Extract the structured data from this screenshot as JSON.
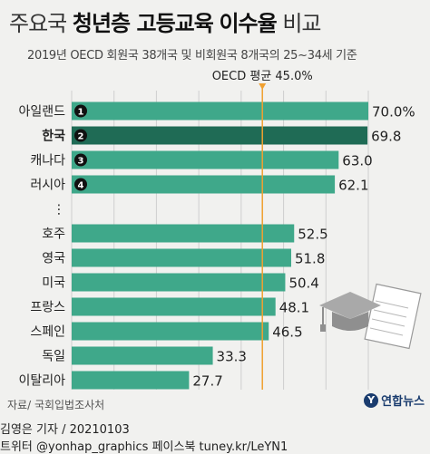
{
  "header": {
    "title_light": "주요국",
    "title_bold": "청년층 고등교육",
    "title_bold2": "이수율",
    "title_light2": "비교",
    "subtitle": "2019년 OECD 회원국 38개국 및 비회원국 8개국의 25~34세 기준"
  },
  "chart_data": {
    "type": "bar",
    "orientation": "horizontal",
    "categories": [
      "아일랜드",
      "한국",
      "캐나다",
      "러시아",
      "⋮",
      "호주",
      "영국",
      "미국",
      "프랑스",
      "스페인",
      "독일",
      "이탈리아"
    ],
    "values": [
      70.0,
      69.8,
      63.0,
      62.1,
      null,
      52.5,
      51.8,
      50.4,
      48.1,
      46.5,
      33.3,
      27.7
    ],
    "value_labels": [
      "70.0%",
      "69.8",
      "63.0",
      "62.1",
      "",
      "52.5",
      "51.8",
      "50.4",
      "48.1",
      "46.5",
      "33.3",
      "27.7"
    ],
    "rank_badges": [
      "1",
      "2",
      "3",
      "4",
      "",
      "",
      "",
      "",
      "",
      "",
      "",
      ""
    ],
    "highlight_index": 1,
    "xlim": [
      0,
      70
    ],
    "xticks": [
      0,
      10,
      20,
      30,
      40,
      50,
      60,
      70
    ],
    "reference": {
      "label": "OECD 평균 45.0%",
      "value": 45.0
    },
    "colors": {
      "bar": "#3fa88a",
      "highlight": "#1f6b55",
      "reference": "#f0a030",
      "grid": "#cfcfcf"
    }
  },
  "footer": {
    "source": "자료/ 국회입법조사처",
    "credit": "김영은 기자 / 20210103",
    "social": "트위터 @yonhap_graphics  페이스북 tuney.kr/LeYN1",
    "logo": "연합뉴스",
    "logo_icon": "yonhap-logo-icon"
  }
}
